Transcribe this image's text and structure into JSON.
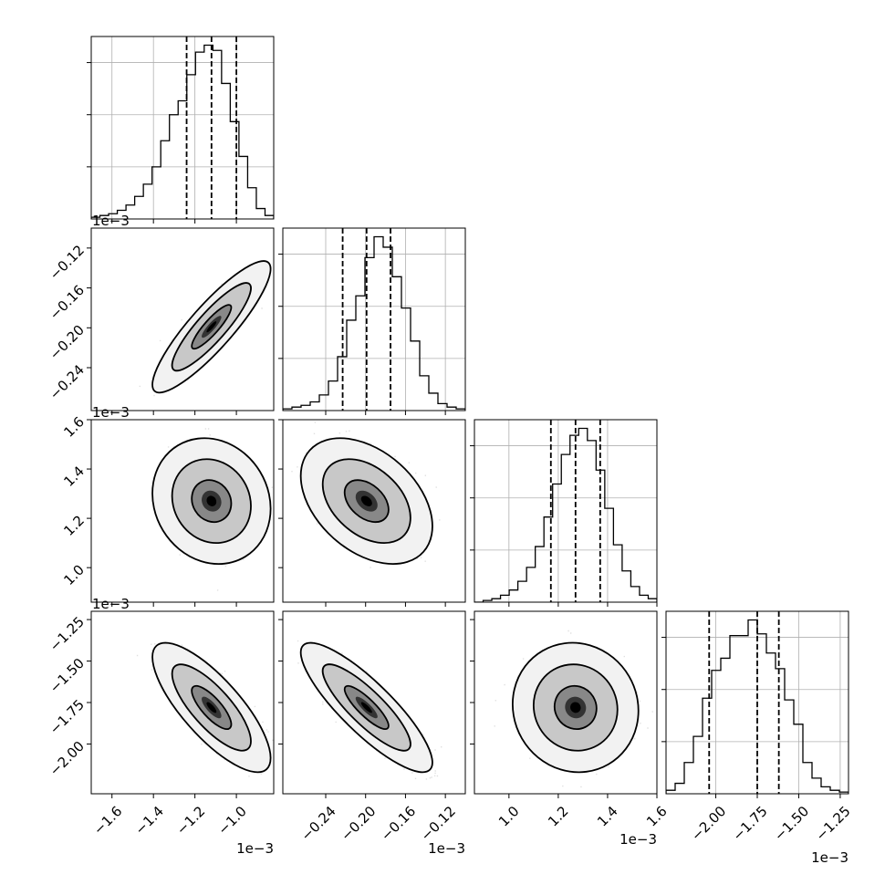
{
  "chart_data": {
    "type": "corner",
    "parameters": [
      {
        "ticks": [
          "−1.6",
          "−1.4",
          "−1.2",
          "−1.0"
        ],
        "tick_values": [
          -1.6,
          -1.4,
          -1.2,
          -1.0
        ],
        "range": [
          -1.7,
          -0.82
        ],
        "offset_text": "1e−3",
        "quantiles": [
          -1.24,
          -1.12,
          -1.0
        ],
        "hist_counts": [
          1,
          2,
          3,
          5,
          8,
          13,
          20,
          30,
          45,
          60,
          68,
          83,
          96,
          100,
          97,
          78,
          56,
          36,
          18,
          6,
          2
        ]
      },
      {
        "ticks": [
          "−0.24",
          "−0.20",
          "−0.16",
          "−0.12"
        ],
        "tick_values": [
          -0.24,
          -0.2,
          -0.16,
          -0.12
        ],
        "range": [
          -0.283,
          -0.1
        ],
        "offset_text": "1e−3",
        "quantiles": [
          -0.223,
          -0.199,
          -0.175
        ],
        "hist_counts": [
          1,
          2,
          3,
          5,
          9,
          17,
          31,
          52,
          66,
          88,
          100,
          94,
          77,
          59,
          40,
          20,
          10,
          4,
          2,
          1
        ]
      },
      {
        "ticks": [
          "1.0",
          "1.2",
          "1.4",
          "1.6"
        ],
        "tick_values": [
          1.0,
          1.2,
          1.4,
          1.6
        ],
        "range": [
          0.86,
          1.6
        ],
        "offset_text": "1e−3",
        "quantiles": [
          1.17,
          1.27,
          1.37
        ],
        "hist_counts": [
          0,
          1,
          2,
          4,
          7,
          12,
          20,
          32,
          49,
          68,
          85,
          96,
          100,
          93,
          76,
          54,
          33,
          18,
          9,
          4,
          2
        ]
      },
      {
        "ticks": [
          "−2.00",
          "−1.75",
          "−1.50",
          "−1.25"
        ],
        "tick_values": [
          -2.0,
          -1.75,
          -1.5,
          -1.25
        ],
        "range": [
          -2.3,
          -1.2
        ],
        "offset_text": "1e−3",
        "quantiles": [
          -2.04,
          -1.75,
          -1.62
        ],
        "hist_counts": [
          2,
          6,
          18,
          33,
          55,
          71,
          78,
          91,
          91,
          100,
          92,
          81,
          72,
          54,
          40,
          18,
          9,
          4,
          2,
          1
        ]
      }
    ],
    "pairs": [
      {
        "row": 1,
        "col": 0,
        "mean": [
          -1.12,
          -0.199
        ],
        "sd": [
          0.095,
          0.022
        ],
        "rho": 0.88
      },
      {
        "row": 2,
        "col": 0,
        "mean": [
          -1.12,
          1.27
        ],
        "sd": [
          0.095,
          0.085
        ],
        "rho": -0.12
      },
      {
        "row": 2,
        "col": 1,
        "mean": [
          -0.199,
          1.27
        ],
        "sd": [
          0.022,
          0.085
        ],
        "rho": -0.4
      },
      {
        "row": 3,
        "col": 0,
        "mean": [
          -1.12,
          -1.78
        ],
        "sd": [
          0.095,
          0.13
        ],
        "rho": -0.78
      },
      {
        "row": 3,
        "col": 1,
        "mean": [
          -0.199,
          -1.78
        ],
        "sd": [
          0.022,
          0.13
        ],
        "rho": -0.85
      },
      {
        "row": 3,
        "col": 2,
        "mean": [
          1.27,
          -1.78
        ],
        "sd": [
          0.085,
          0.13
        ],
        "rho": -0.05
      }
    ]
  }
}
